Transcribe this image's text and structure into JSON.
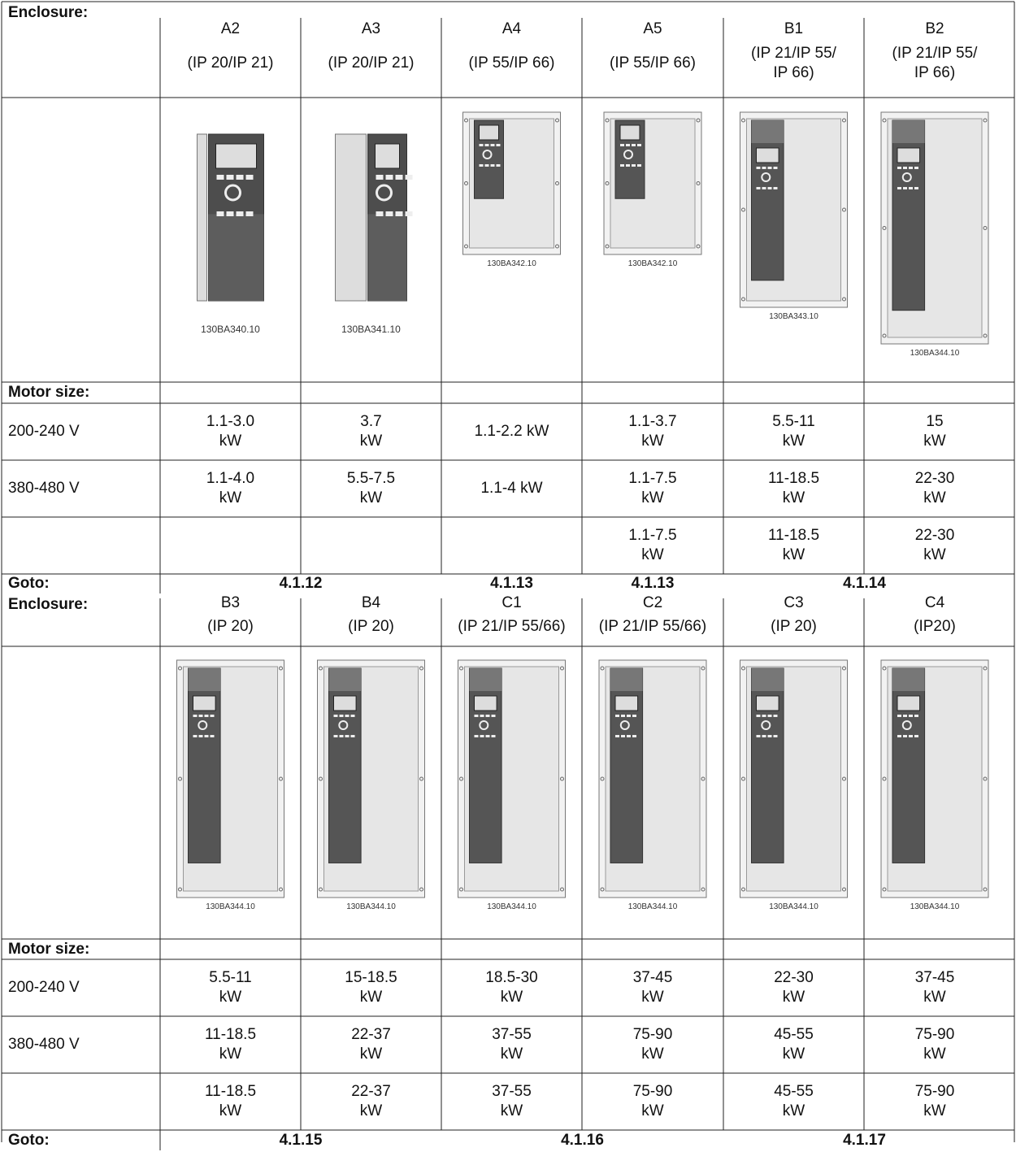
{
  "blocks": [
    {
      "enclosure_label": "Enclosure:",
      "enclosures": [
        {
          "name": "A2",
          "rating": "(IP 20/IP 21)",
          "image_code": "130BA340.10"
        },
        {
          "name": "A3",
          "rating": "(IP 20/IP 21)",
          "image_code": "130BA341.10"
        },
        {
          "name": "A4",
          "rating": "(IP 55/IP 66)",
          "image_code": "130BA342.10"
        },
        {
          "name": "A5",
          "rating": "(IP 55/IP 66)",
          "image_code": "130BA342.10"
        },
        {
          "name": "B1",
          "rating": "(IP 21/IP 55/\nIP 66)",
          "image_code": "130BA343.10"
        },
        {
          "name": "B2",
          "rating": "(IP 21/IP 55/\nIP 66)",
          "image_code": "130BA344.10"
        }
      ],
      "motor_size_label": "Motor size:",
      "rows": [
        {
          "label": "200-240 V",
          "values": [
            "1.1-3.0\nkW",
            "3.7\nkW",
            "1.1-2.2 kW",
            "1.1-3.7\nkW",
            "5.5-11\nkW",
            "15\nkW"
          ]
        },
        {
          "label": "380-480 V",
          "values": [
            "1.1-4.0\nkW",
            "5.5-7.5\nkW",
            "1.1-4 kW",
            "1.1-7.5\nkW",
            "11-18.5\nkW",
            "22-30\nkW"
          ]
        },
        {
          "label": null,
          "values": [
            null,
            null,
            null,
            "1.1-7.5\nkW",
            "11-18.5\nkW",
            "22-30\nkW"
          ]
        }
      ],
      "goto_label": "Goto:",
      "goto": [
        "4.1.12",
        "4.1.13",
        "4.1.13",
        "4.1.14"
      ]
    },
    {
      "enclosure_label": "Enclosure:",
      "enclosures": [
        {
          "name": "B3",
          "rating": "(IP 20)",
          "image_code": "130BA344.10"
        },
        {
          "name": "B4",
          "rating": "(IP 20)",
          "image_code": "130BA344.10"
        },
        {
          "name": "C1",
          "rating": "(IP 21/IP 55/66)",
          "image_code": "130BA344.10"
        },
        {
          "name": "C2",
          "rating": "(IP 21/IP 55/66)",
          "image_code": "130BA344.10"
        },
        {
          "name": "C3",
          "rating": "(IP 20)",
          "image_code": "130BA344.10"
        },
        {
          "name": "C4",
          "rating": "(IP20)",
          "image_code": "130BA344.10"
        }
      ],
      "motor_size_label": "Motor size:",
      "rows": [
        {
          "label": "200-240 V",
          "values": [
            "5.5-11\nkW",
            "15-18.5\nkW",
            "18.5-30\nkW",
            "37-45\nkW",
            "22-30\nkW",
            "37-45\nkW"
          ]
        },
        {
          "label": "380-480 V",
          "values": [
            "11-18.5\nkW",
            "22-37\nkW",
            "37-55\nkW",
            "75-90\nkW",
            "45-55\nkW",
            "75-90\nkW"
          ]
        },
        {
          "label": null,
          "values": [
            "11-18.5\nkW",
            "22-37\nkW",
            "37-55\nkW",
            "75-90\nkW",
            "45-55\nkW",
            "75-90\nkW"
          ]
        }
      ],
      "goto_label": "Goto:",
      "goto": [
        "4.1.15",
        "4.1.16",
        "4.1.17"
      ]
    }
  ]
}
